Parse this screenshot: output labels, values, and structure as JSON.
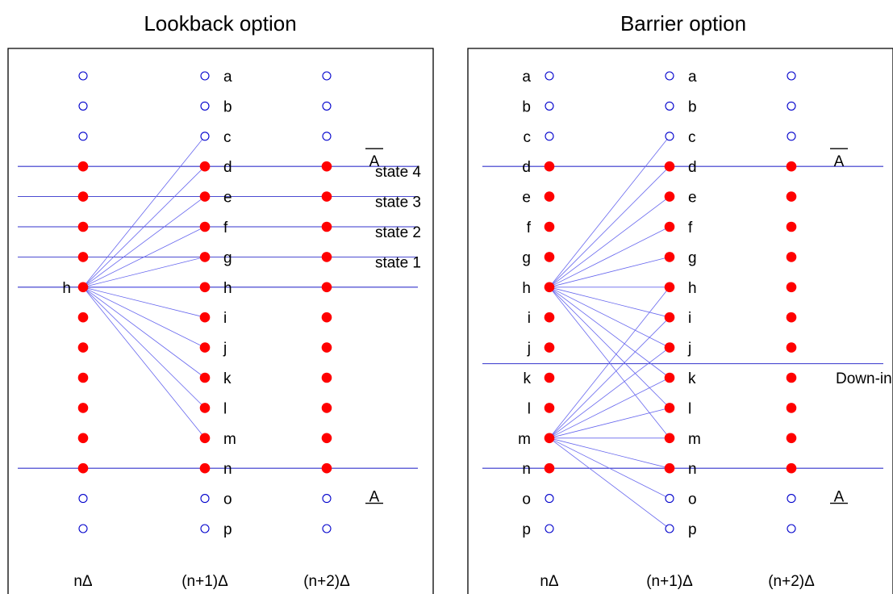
{
  "colors": {
    "node_fill": "#ff0000",
    "node_hollow_stroke": "#0000cc",
    "level_line": "#3333cc",
    "edge": "#6666ee",
    "frame": "#000000"
  },
  "row_labels": [
    "a",
    "b",
    "c",
    "d",
    "e",
    "f",
    "g",
    "h",
    "i",
    "j",
    "k",
    "l",
    "m",
    "n",
    "o",
    "p"
  ],
  "time_labels": [
    "nΔ",
    "(n+1)Δ",
    "(n+2)Δ"
  ],
  "panels": [
    {
      "id": "lookback",
      "title": "Lookback option",
      "label_side": "right",
      "source_labels": [
        "h"
      ],
      "filled_range": [
        3,
        13
      ],
      "upper_barrier_label": "A",
      "lower_barrier_label": "A",
      "state_labels": [
        "state 4",
        "state 3",
        "state 2",
        "state 1"
      ],
      "extra_label": "",
      "edges": [
        {
          "from": 7,
          "to": [
            2,
            3,
            4,
            5,
            6,
            7,
            8,
            9,
            10,
            11,
            12
          ]
        }
      ]
    },
    {
      "id": "barrier",
      "title": "Barrier option",
      "label_side": "both",
      "source_labels": [],
      "filled_range": [
        3,
        13
      ],
      "upper_barrier_label": "A",
      "lower_barrier_label": "A",
      "state_labels": [],
      "extra_label": "Down-in",
      "edges": [
        {
          "from": 7,
          "to": [
            2,
            3,
            4,
            5,
            6,
            7,
            8,
            9,
            10,
            11,
            12
          ]
        },
        {
          "from": 12,
          "to": [
            7,
            8,
            9,
            10,
            11,
            12,
            13,
            14,
            15
          ]
        }
      ]
    }
  ]
}
